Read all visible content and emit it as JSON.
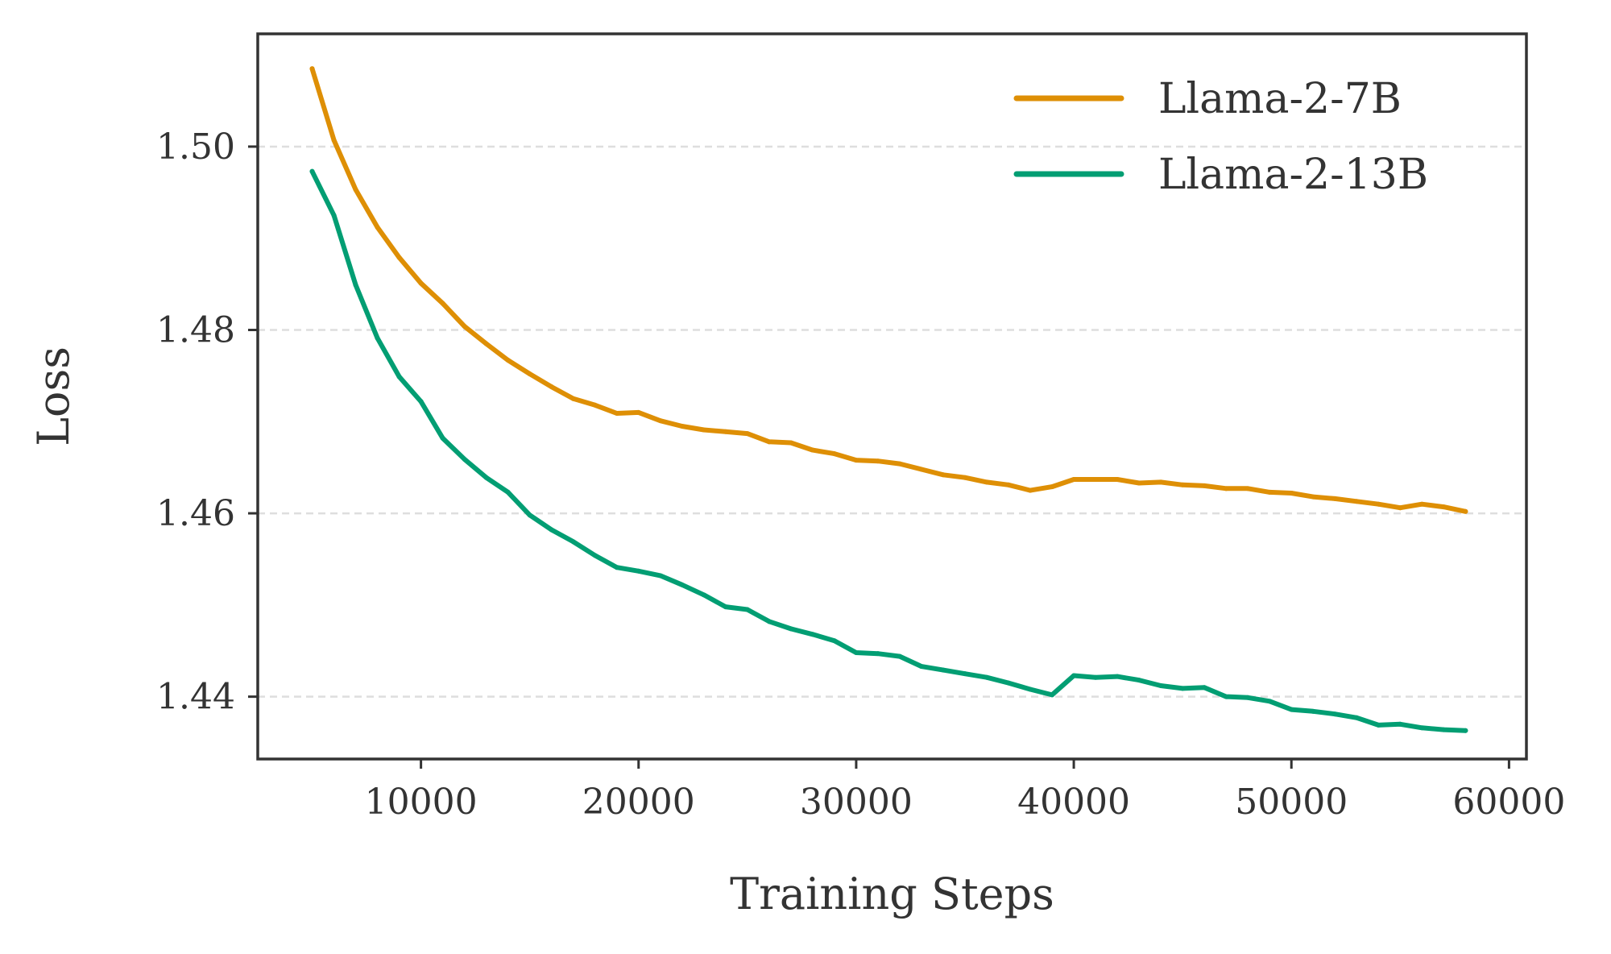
{
  "chart_data": {
    "type": "line",
    "title": "",
    "xlabel": "Training Steps",
    "ylabel": "Loss",
    "xlim": [
      2500,
      60800
    ],
    "ylim": [
      1.4332,
      1.5123
    ],
    "xticks": [
      10000,
      20000,
      30000,
      40000,
      50000,
      60000
    ],
    "xtick_labels": [
      "10000",
      "20000",
      "30000",
      "40000",
      "50000",
      "60000"
    ],
    "yticks": [
      1.44,
      1.46,
      1.48,
      1.5
    ],
    "ytick_labels": [
      "1.44",
      "1.46",
      "1.48",
      "1.50"
    ],
    "grid": "horizontal-dashed",
    "legend_position": "top-right",
    "x": [
      5000,
      6000,
      7000,
      8000,
      9000,
      10000,
      11000,
      12000,
      13000,
      14000,
      15000,
      16000,
      17000,
      18000,
      19000,
      20000,
      21000,
      22000,
      23000,
      24000,
      25000,
      26000,
      27000,
      28000,
      29000,
      30000,
      31000,
      32000,
      33000,
      34000,
      35000,
      36000,
      37000,
      38000,
      39000,
      40000,
      41000,
      42000,
      43000,
      44000,
      45000,
      46000,
      47000,
      48000,
      49000,
      50000,
      51000,
      52000,
      53000,
      54000,
      55000,
      56000,
      57000,
      58000
    ],
    "series": [
      {
        "name": "Llama-2-7B",
        "color": "#de8f05",
        "values": [
          1.5085,
          1.5007,
          1.4953,
          1.4912,
          1.4879,
          1.4851,
          1.4829,
          1.4804,
          1.4785,
          1.4767,
          1.4752,
          1.4738,
          1.4725,
          1.4718,
          1.4709,
          1.471,
          1.4701,
          1.4695,
          1.4691,
          1.4689,
          1.4687,
          1.4678,
          1.4677,
          1.4669,
          1.4665,
          1.4658,
          1.4657,
          1.4654,
          1.4648,
          1.4642,
          1.4639,
          1.4634,
          1.4631,
          1.4625,
          1.4629,
          1.4637,
          1.4637,
          1.4637,
          1.4633,
          1.4634,
          1.4631,
          1.463,
          1.4627,
          1.4627,
          1.4623,
          1.4622,
          1.4618,
          1.4616,
          1.4613,
          1.461,
          1.4606,
          1.461,
          1.4607,
          1.4602
        ]
      },
      {
        "name": "Llama-2-13B",
        "color": "#029e73",
        "values": [
          1.4973,
          1.4925,
          1.4849,
          1.4791,
          1.4749,
          1.4722,
          1.4682,
          1.4659,
          1.4639,
          1.4623,
          1.4598,
          1.4582,
          1.4569,
          1.4554,
          1.4541,
          1.4537,
          1.4532,
          1.4522,
          1.4511,
          1.4498,
          1.4495,
          1.4482,
          1.4474,
          1.4468,
          1.4461,
          1.4448,
          1.4447,
          1.4444,
          1.4433,
          1.4429,
          1.4425,
          1.4421,
          1.4415,
          1.4408,
          1.4402,
          1.4423,
          1.4421,
          1.4422,
          1.4418,
          1.4412,
          1.4409,
          1.441,
          1.44,
          1.4399,
          1.4395,
          1.4386,
          1.4384,
          1.4381,
          1.4377,
          1.4369,
          1.437,
          1.4366,
          1.4364,
          1.4363
        ]
      }
    ]
  }
}
